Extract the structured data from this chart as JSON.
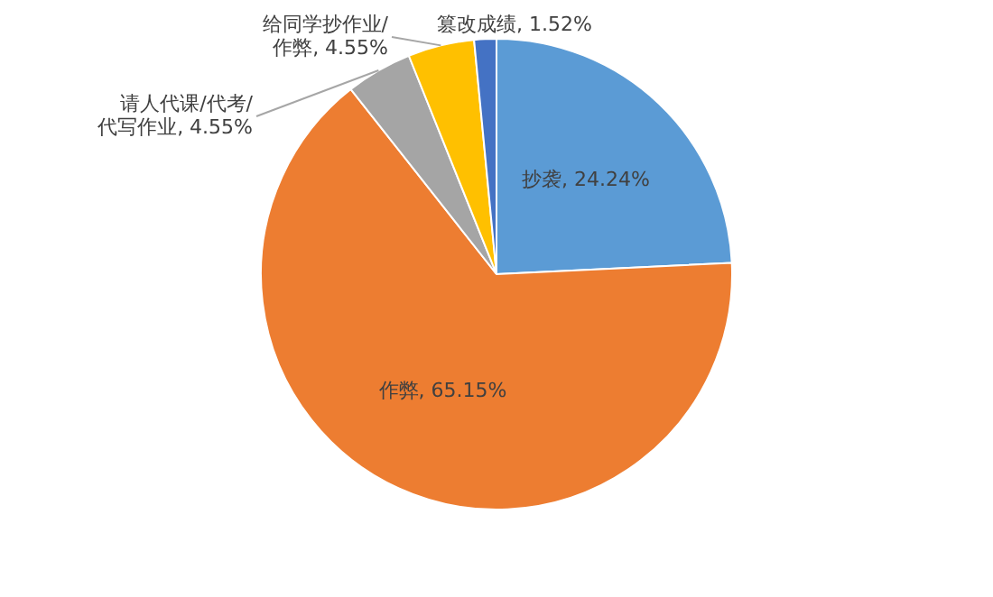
{
  "chart_data": {
    "type": "pie",
    "categories": [
      "抄袭",
      "作弊",
      "请人代课/代考/代写作业",
      "给同学抄作业/作弊",
      "篡改成绩"
    ],
    "values": [
      24.24,
      65.15,
      4.55,
      4.55,
      1.52
    ],
    "value_labels": [
      "24.24%",
      "65.15%",
      "4.55%",
      "4.55%",
      "1.52%"
    ],
    "colors": [
      "#5b9bd5",
      "#ed7d31",
      "#a5a5a5",
      "#ffc000",
      "#4472c4"
    ],
    "legend": false
  }
}
